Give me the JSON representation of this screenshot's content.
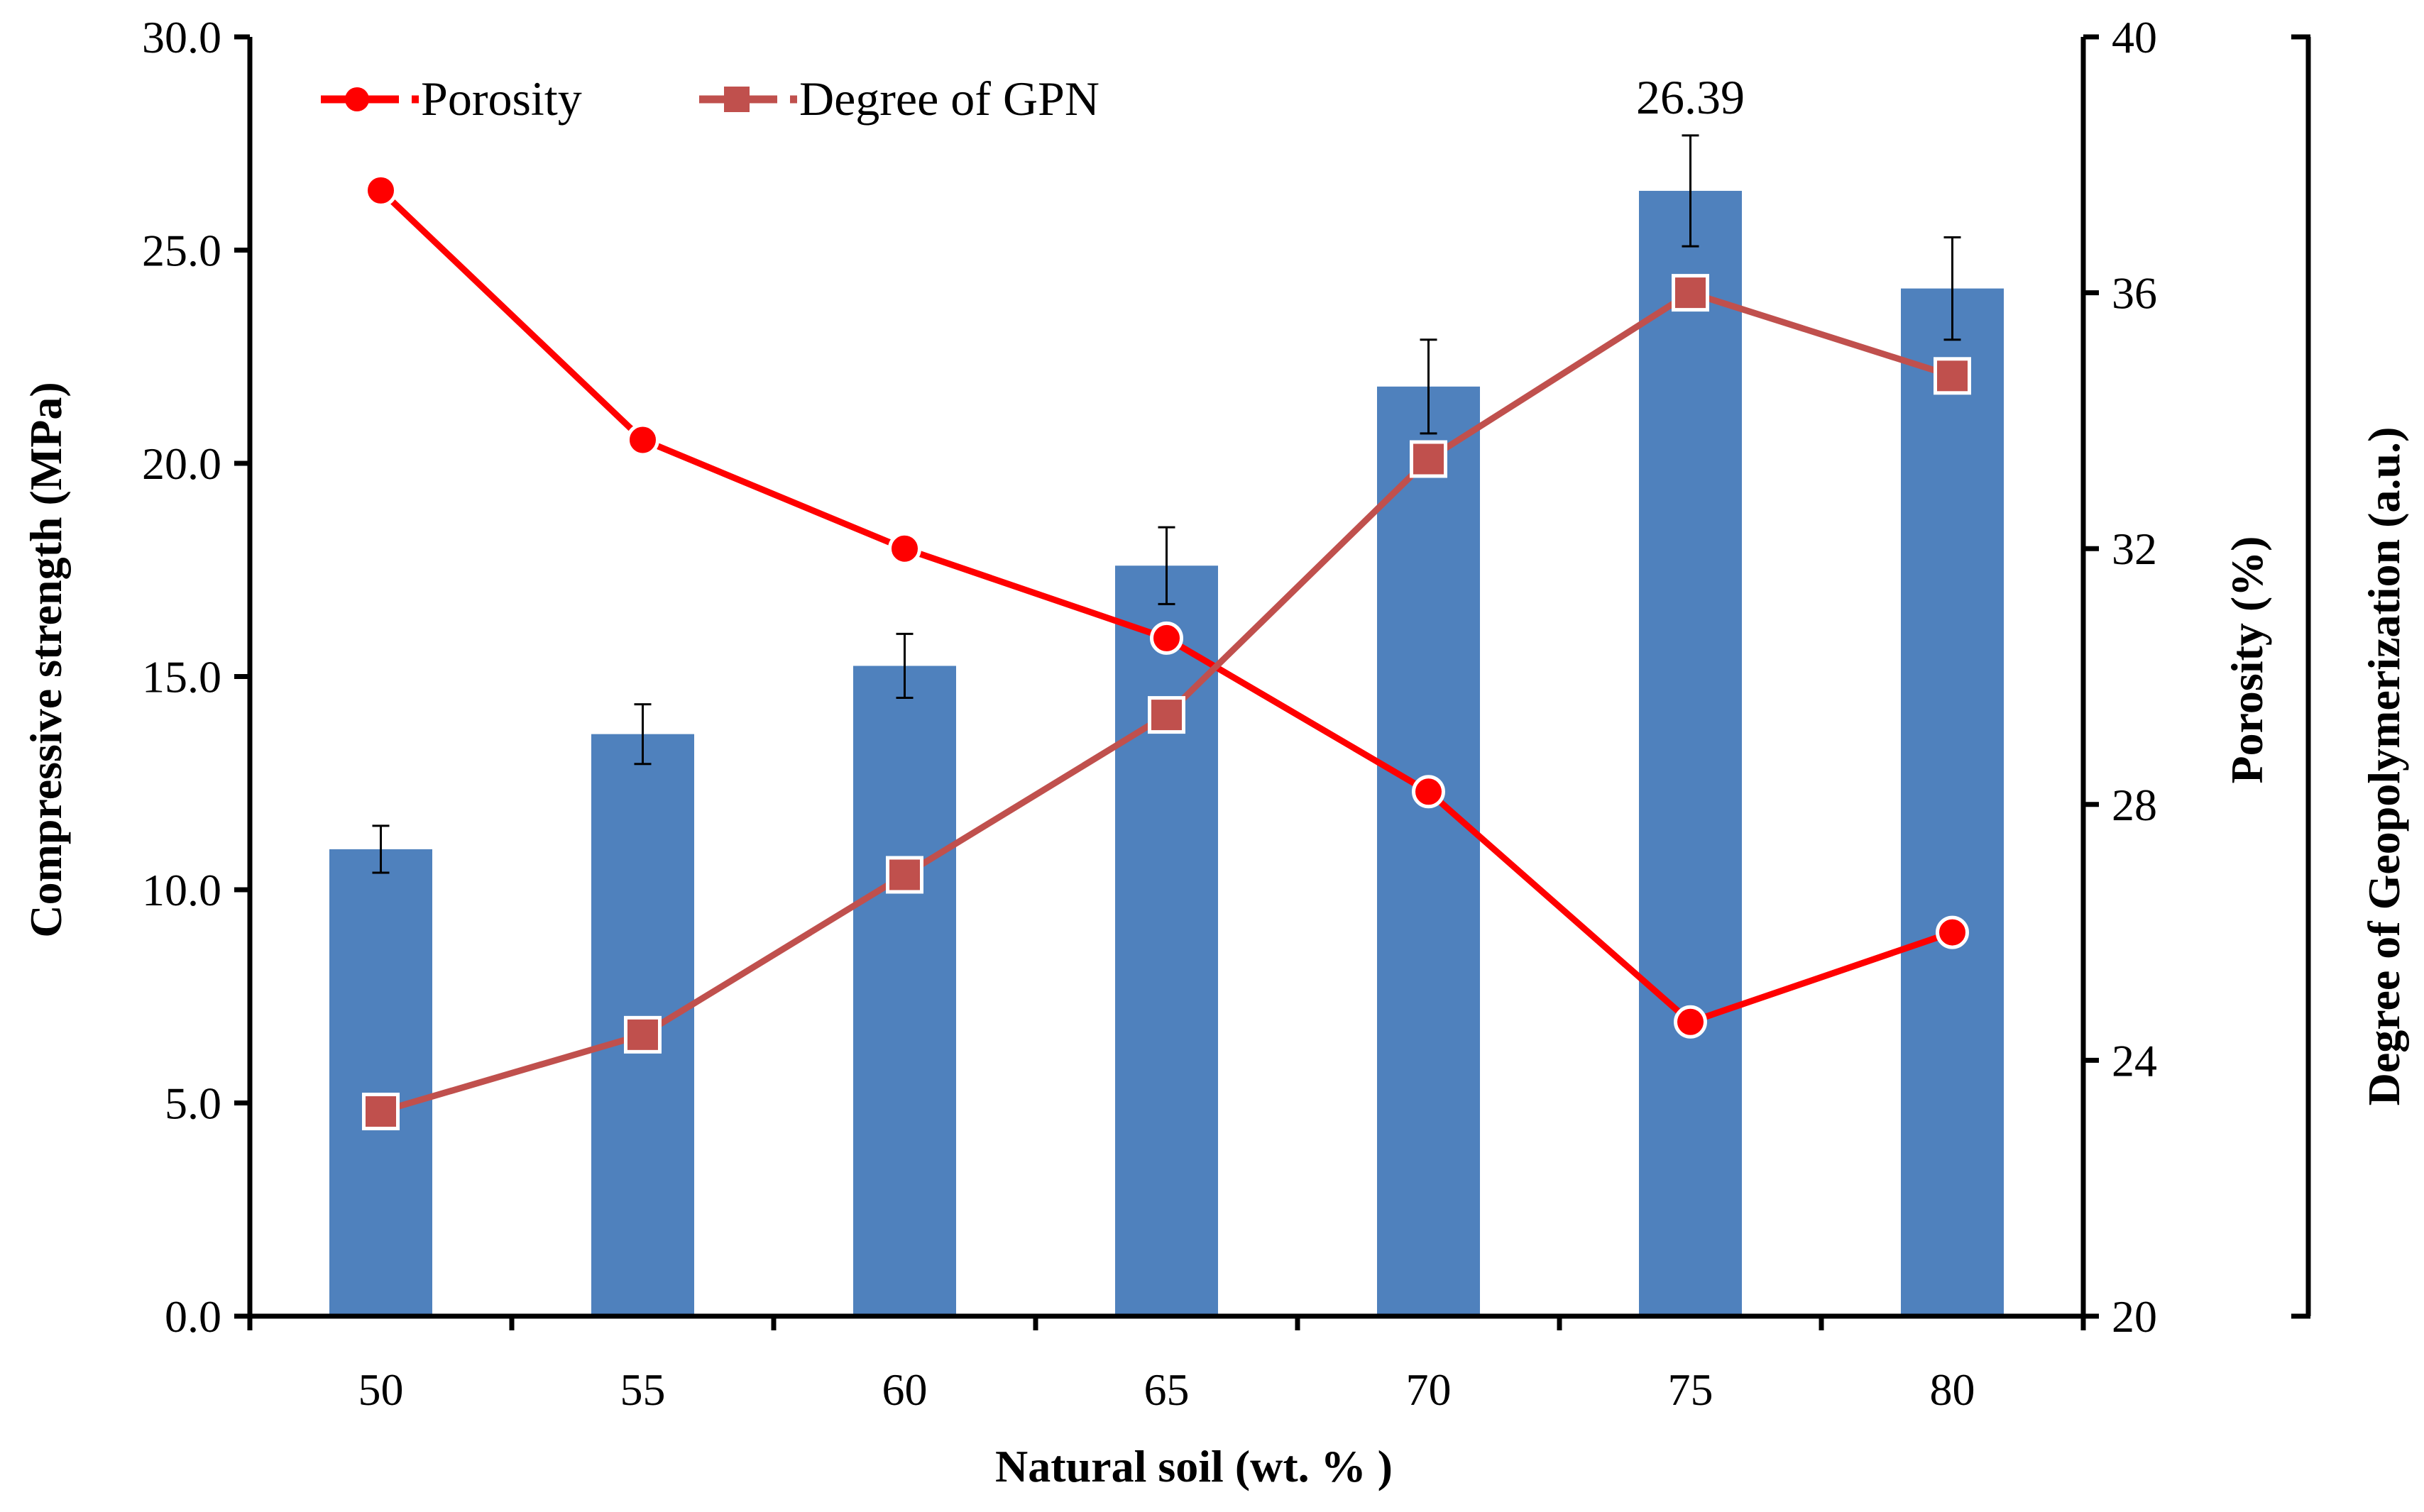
{
  "chart_data": {
    "type": "bar+line",
    "categories": [
      "50",
      "55",
      "60",
      "65",
      "70",
      "75",
      "80"
    ],
    "xlabel": "Natural soil (wt. % )",
    "bars": {
      "name": "Compressive strength",
      "values": [
        10.95,
        13.65,
        15.25,
        17.6,
        21.8,
        26.39,
        24.1
      ],
      "errors": [
        0.55,
        0.7,
        0.75,
        0.9,
        1.1,
        1.3,
        1.2
      ],
      "color": "#4f81bd"
    },
    "series": [
      {
        "name": "Porosity",
        "axis": "porosity",
        "values": [
          37.6,
          33.7,
          32.0,
          30.6,
          28.2,
          24.6,
          26.0
        ],
        "color": "#ff0000",
        "marker": "circle"
      },
      {
        "name": "Degree of GPN",
        "axis": "gpn",
        "values": [
          23.2,
          24.4,
          26.9,
          29.4,
          33.4,
          36.0,
          34.7
        ],
        "color": "#c0504d",
        "marker": "square"
      }
    ],
    "y_left": {
      "label": "Compressive strength (MPa)",
      "min": 0,
      "max": 30,
      "step": 5,
      "ticks": [
        "0.0",
        "5.0",
        "10.0",
        "15.0",
        "20.0",
        "25.0",
        "30.0"
      ]
    },
    "y_right": {
      "label": "Porosity (%)",
      "min": 20,
      "max": 40,
      "step": 4,
      "ticks": [
        "20",
        "24",
        "28",
        "32",
        "36",
        "40"
      ]
    },
    "y_far_right": {
      "label": "Degree of Geopolymerization (a.u.)"
    },
    "annotation": {
      "text": "26.39",
      "category": "75"
    },
    "legend": {
      "placement": "top-left",
      "items": [
        {
          "label": "Porosity",
          "marker": "circle",
          "color": "#ff0000"
        },
        {
          "label": "Degree of GPN",
          "marker": "square",
          "color": "#c0504d"
        }
      ]
    }
  }
}
